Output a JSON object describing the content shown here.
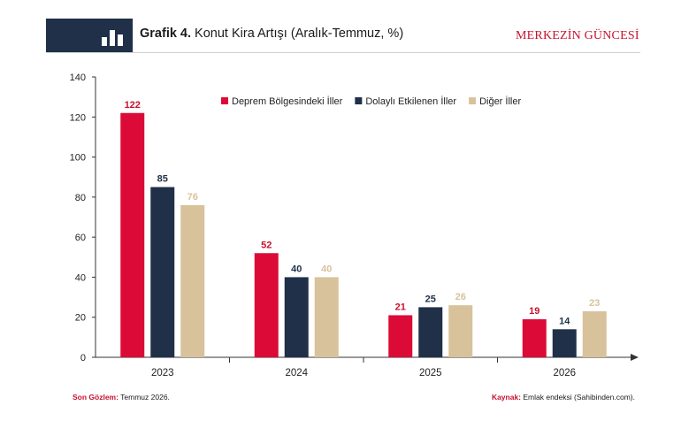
{
  "header": {
    "title_bold": "Grafik 4.",
    "title_rest": " Konut Kira Artışı (Aralık-Temmuz, %)",
    "brand": "MERKEZİN GÜNCESİ",
    "icon": "bar-chart-icon"
  },
  "footer": {
    "left_key": "Son Gözlem:",
    "left_value": " Temmuz 2026.",
    "right_key": "Kaynak:",
    "right_value": " Emlak endeksi (Sahibinden.com)."
  },
  "colors": {
    "brand_red": "#c8102e",
    "navy": "#1f3048",
    "beige": "#d8c29b"
  },
  "chart_data": {
    "type": "bar",
    "title": "",
    "xlabel": "",
    "ylabel": "",
    "categories": [
      "2023",
      "2024",
      "2025",
      "2026"
    ],
    "ylim": [
      0,
      140
    ],
    "yticks": [
      0,
      20,
      40,
      60,
      80,
      100,
      120,
      140
    ],
    "grid": false,
    "legend_position": "top-right",
    "series": [
      {
        "name": "Deprem Bölgesindeki İller",
        "color": "#dc0a37",
        "label_color": "#c8102e",
        "values": [
          122,
          52,
          21,
          19
        ]
      },
      {
        "name": "Dolaylı Etkilenen İller",
        "color": "#1f3048",
        "label_color": "#1f3048",
        "values": [
          85,
          40,
          25,
          14
        ]
      },
      {
        "name": "Diğer İller",
        "color": "#d8c29b",
        "label_color": "#d8c29b",
        "values": [
          76,
          40,
          26,
          23
        ]
      }
    ]
  }
}
